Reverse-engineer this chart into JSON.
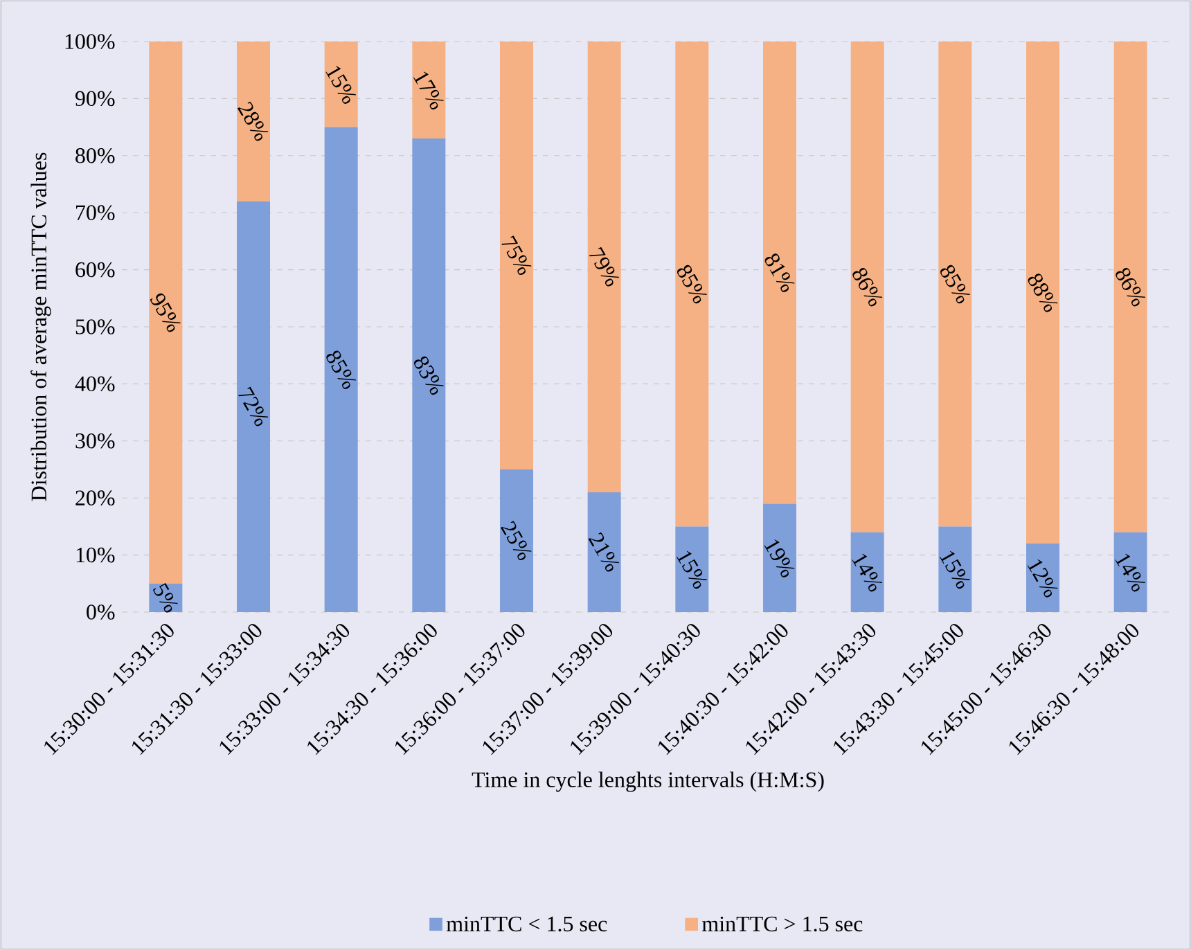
{
  "chart_data": {
    "type": "bar",
    "stacked": true,
    "xlabel": "Time in cycle lenghts intervals (H:M:S)",
    "ylabel": "Distribution of average minTTC values",
    "categories": [
      "15:30:00 - 15:31:30",
      "15:31:30 - 15:33:00",
      "15:33:00 - 15:34:30",
      "15:34:30 - 15:36:00",
      "15:36:00 - 15:37:00",
      "15:37:00 - 15:39:00",
      "15:39:00 - 15:40:30",
      "15:40:30 - 15:42:00",
      "15:42:00 - 15:43:30",
      "15:43:30 - 15:45:00",
      "15:45:00 - 15:46:30",
      "15:46:30 - 15:48:00"
    ],
    "series": [
      {
        "name": "minTTC < 1.5  sec",
        "color": "#7f9fdb",
        "values": [
          5,
          72,
          85,
          83,
          25,
          21,
          15,
          19,
          14,
          15,
          12,
          14
        ],
        "value_labels": [
          "5%",
          "72%",
          "85%",
          "83%",
          "25%",
          "21%",
          "15%",
          "19%",
          "14%",
          "15%",
          "12%",
          "14%"
        ]
      },
      {
        "name": "minTTC > 1.5  sec",
        "color": "#f5b183",
        "values": [
          95,
          28,
          15,
          17,
          75,
          79,
          85,
          81,
          86,
          85,
          88,
          86
        ],
        "value_labels": [
          "95%",
          "28%",
          "15%",
          "17%",
          "75%",
          "79%",
          "85%",
          "81%",
          "86%",
          "85%",
          "88%",
          "86%"
        ]
      }
    ],
    "ylim": [
      0,
      100
    ],
    "yticks": [
      {
        "value": 0,
        "label": "0%"
      },
      {
        "value": 10,
        "label": "10%"
      },
      {
        "value": 20,
        "label": "20%"
      },
      {
        "value": 30,
        "label": "30%"
      },
      {
        "value": 40,
        "label": "40%"
      },
      {
        "value": 50,
        "label": "50%"
      },
      {
        "value": 60,
        "label": "60%"
      },
      {
        "value": 70,
        "label": "70%"
      },
      {
        "value": 80,
        "label": "80%"
      },
      {
        "value": 90,
        "label": "90%"
      },
      {
        "value": 100,
        "label": "100%"
      }
    ],
    "grid": "y",
    "legend": "bottom"
  }
}
